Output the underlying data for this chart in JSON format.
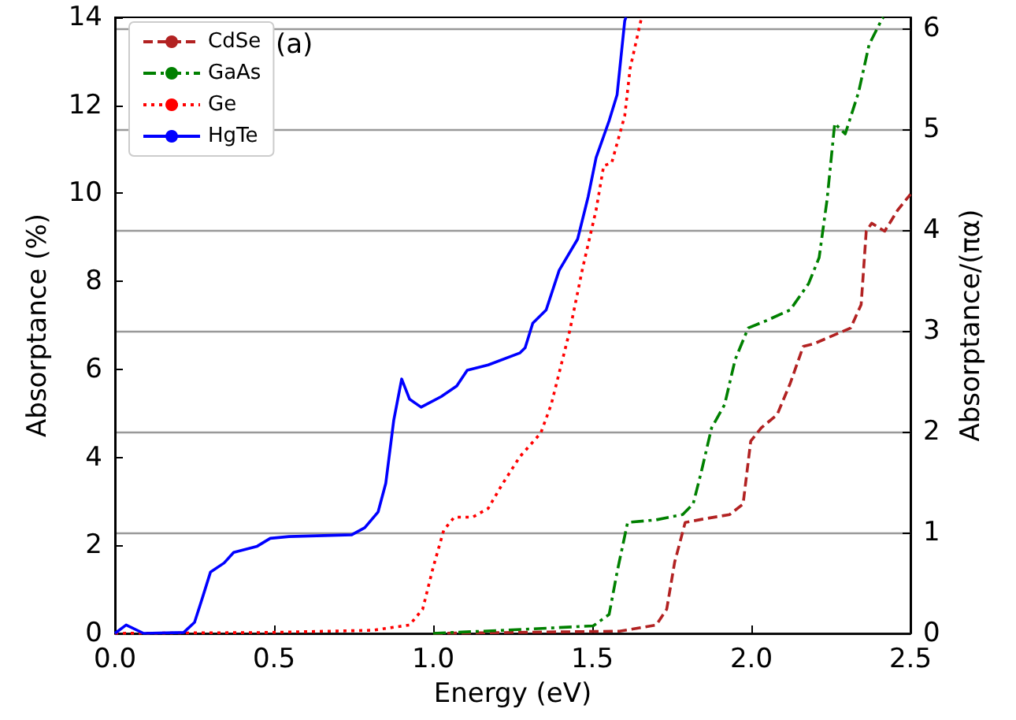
{
  "chart_data": {
    "type": "line",
    "xlabel": "Energy (eV)",
    "ylabel": "Absorptance (%)",
    "y2label": "Absorptance/(πα)",
    "annotations": [
      "(a)"
    ],
    "xlim": [
      0,
      2.5
    ],
    "xticks": [
      {
        "value": 0,
        "label": "0.0"
      },
      {
        "value": 0.5,
        "label": "0.5"
      },
      {
        "value": 1,
        "label": "1.0"
      },
      {
        "value": 1.5,
        "label": "1.5"
      },
      {
        "value": 2,
        "label": "2.0"
      },
      {
        "value": 2.5,
        "label": "2.5"
      }
    ],
    "ylim": [
      0,
      14
    ],
    "yticks": [
      0,
      2,
      4,
      6,
      8,
      10,
      12,
      14
    ],
    "y2lim": [
      0,
      6.107
    ],
    "y2ticks": [
      0,
      1,
      2,
      3,
      4,
      5,
      6
    ],
    "grid": "y2",
    "legend": "top left",
    "series": [
      {
        "name": "CdSe",
        "color": "#b22222",
        "line_style": "dashed",
        "x": [
          1.0,
          1.586,
          1.701,
          1.734,
          1.759,
          1.792,
          1.85,
          1.932,
          1.974,
          1.998,
          2.031,
          2.081,
          2.122,
          2.163,
          2.196,
          2.254,
          2.312,
          2.345,
          2.361,
          2.378,
          2.419,
          2.46,
          2.5
        ],
        "values": [
          0,
          0.05,
          0.19,
          0.55,
          1.62,
          2.52,
          2.6,
          2.7,
          2.94,
          4.37,
          4.67,
          4.97,
          5.68,
          6.52,
          6.58,
          6.76,
          6.94,
          7.47,
          9.14,
          9.32,
          9.14,
          9.62,
          9.98
        ]
      },
      {
        "name": "GaAs",
        "color": "#008000",
        "line_style": "dashdot",
        "x": [
          1.0,
          1.223,
          1.503,
          1.553,
          1.578,
          1.611,
          1.701,
          1.784,
          1.817,
          1.842,
          1.875,
          1.916,
          1.949,
          1.99,
          2.048,
          2.122,
          2.18,
          2.213,
          2.238,
          2.262,
          2.295,
          2.337,
          2.37,
          2.411,
          2.415
        ],
        "values": [
          0,
          0.07,
          0.17,
          0.43,
          1.39,
          2.52,
          2.58,
          2.7,
          2.94,
          3.65,
          4.67,
          5.2,
          6.22,
          6.94,
          7.11,
          7.35,
          7.95,
          8.54,
          9.86,
          11.59,
          11.35,
          12.3,
          13.38,
          13.97,
          14
        ]
      },
      {
        "name": "Ge",
        "color": "#ff0000",
        "line_style": "dotted",
        "x": [
          0,
          0.48,
          0.81,
          0.926,
          0.967,
          1.0,
          1.033,
          1.066,
          1.124,
          1.173,
          1.214,
          1.272,
          1.338,
          1.371,
          1.429,
          1.47,
          1.512,
          1.536,
          1.561,
          1.602,
          1.619,
          1.655
        ],
        "values": [
          0,
          0.02,
          0.07,
          0.19,
          0.55,
          1.5,
          2.34,
          2.64,
          2.64,
          2.84,
          3.35,
          4.01,
          4.55,
          5.2,
          6.87,
          8.31,
          9.62,
          10.63,
          10.69,
          11.76,
          12.84,
          14
        ]
      },
      {
        "name": "HgTe",
        "color": "#0000ff",
        "line_style": "solid",
        "x": [
          0,
          0.035,
          0.09,
          0.216,
          0.25,
          0.274,
          0.3,
          0.343,
          0.373,
          0.447,
          0.488,
          0.547,
          0.744,
          0.785,
          0.827,
          0.851,
          0.876,
          0.901,
          0.926,
          0.962,
          1.025,
          1.074,
          1.107,
          1.173,
          1.272,
          1.289,
          1.313,
          1.355,
          1.396,
          1.454,
          1.487,
          1.512,
          1.553,
          1.578,
          1.602,
          1.606
        ],
        "values": [
          0,
          0.19,
          0,
          0.02,
          0.25,
          0.79,
          1.39,
          1.6,
          1.84,
          1.98,
          2.16,
          2.2,
          2.24,
          2.4,
          2.76,
          3.41,
          4.84,
          5.78,
          5.32,
          5.14,
          5.38,
          5.62,
          5.98,
          6.1,
          6.37,
          6.49,
          7.05,
          7.35,
          8.25,
          8.96,
          9.92,
          10.81,
          11.65,
          12.24,
          13.92,
          14
        ]
      }
    ]
  }
}
